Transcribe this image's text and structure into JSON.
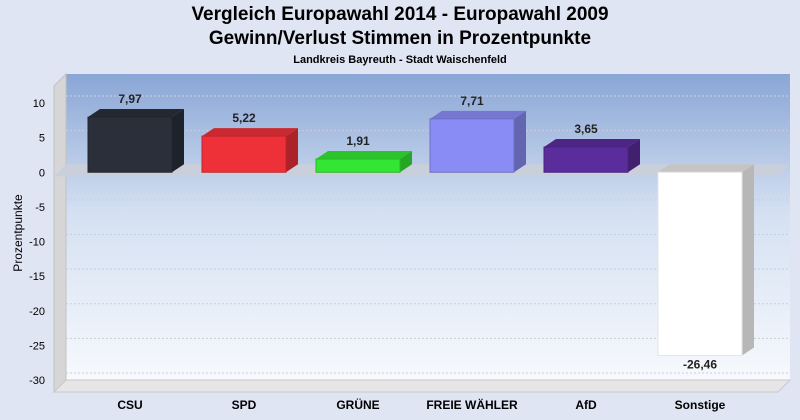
{
  "chart_data": {
    "type": "bar",
    "title": "Vergleich Europawahl 2014 - Europawahl 2009",
    "subtitle": "Gewinn/Verlust Stimmen in Prozentpunkte",
    "subsubtitle": "Landkreis Bayreuth - Stadt Waischenfeld",
    "ylabel": "Prozentpunkte",
    "xlabel": "",
    "ylim": [
      -30,
      10
    ],
    "yticks": [
      10,
      5,
      0,
      -5,
      -10,
      -15,
      -20,
      -25,
      -30
    ],
    "grid": true,
    "legend": "none",
    "categories": [
      "CSU",
      "SPD",
      "GRÜNE",
      "FREIE WÄHLER",
      "AfD",
      "Sonstige"
    ],
    "values": [
      7.97,
      5.22,
      1.91,
      7.71,
      3.65,
      -26.46
    ],
    "value_labels": [
      "7,97",
      "5,22",
      "1,91",
      "7,71",
      "3,65",
      "-26,46"
    ],
    "colors": [
      "#2a2f3a",
      "#ee3038",
      "#33e633",
      "#8a8cf5",
      "#5b2d9c",
      "#ffffff"
    ]
  }
}
